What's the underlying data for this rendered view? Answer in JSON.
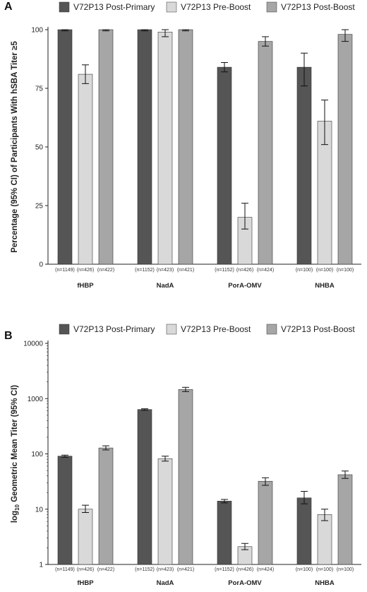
{
  "colors": {
    "post_primary": "#555555",
    "pre_boost": "#d9d9d9",
    "post_boost": "#a6a6a6",
    "stroke": "#333333",
    "axis": "#222222"
  },
  "chart_data": [
    {
      "panel": "A",
      "type": "bar",
      "ylabel": "Percentage (95% CI) of Participants With hSBA Titer ≥5",
      "ylim": [
        0,
        100
      ],
      "yticks": [
        0,
        25,
        50,
        75,
        100
      ],
      "categories": [
        "fHBP",
        "NadA",
        "PorA-OMV",
        "NHBA"
      ],
      "legend_position": "top",
      "series": [
        {
          "name": "V72P13 Post-Primary",
          "color_key": "post_primary",
          "values": [
            100,
            100,
            84,
            84
          ],
          "ci_low": [
            99.5,
            99.5,
            82,
            76
          ],
          "ci_high": [
            100,
            100,
            86,
            90
          ],
          "n": [
            "(n=1149)",
            "(n=1152)",
            "(n=1152)",
            "(n=100)"
          ]
        },
        {
          "name": "V72P13 Pre-Boost",
          "color_key": "pre_boost",
          "values": [
            81,
            99,
            20,
            61
          ],
          "ci_low": [
            77,
            97,
            15,
            51
          ],
          "ci_high": [
            85,
            100,
            26,
            70
          ],
          "n": [
            "(n=426)",
            "(n=423)",
            "(n=426)",
            "(n=100)"
          ]
        },
        {
          "name": "V72P13 Post-Boost",
          "color_key": "post_boost",
          "values": [
            100,
            100,
            95,
            98
          ],
          "ci_low": [
            99.5,
            99.5,
            93,
            95
          ],
          "ci_high": [
            100,
            100,
            97,
            100
          ],
          "n": [
            "(n=422)",
            "(n=421)",
            "(n=424)",
            "(n=100)"
          ]
        }
      ]
    },
    {
      "panel": "B",
      "type": "bar",
      "yscale": "log",
      "ylabel_prefix": "log",
      "ylabel_sub": "10",
      "ylabel_rest": " Geometric Mean Titer (95% CI)",
      "ylim": [
        1,
        10000
      ],
      "yticks": [
        1,
        10,
        100,
        1000,
        10000
      ],
      "ytick_labels": [
        "1",
        "10",
        "100",
        "1000",
        "10000"
      ],
      "categories": [
        "fHBP",
        "NadA",
        "PorA-OMV",
        "NHBA"
      ],
      "legend_position": "top",
      "series": [
        {
          "name": "V72P13 Post-Primary",
          "color_key": "post_primary",
          "values": [
            91,
            635,
            14,
            16
          ],
          "ci_low": [
            87,
            615,
            13,
            12.5
          ],
          "ci_high": [
            95,
            655,
            15,
            21
          ],
          "n": [
            "(n=1149)",
            "(n=1152)",
            "(n=1152)",
            "(n=100)"
          ]
        },
        {
          "name": "V72P13 Pre-Boost",
          "color_key": "pre_boost",
          "values": [
            10,
            82,
            2.1,
            8
          ],
          "ci_low": [
            8.7,
            74,
            1.85,
            6.2
          ],
          "ci_high": [
            11.8,
            91,
            2.4,
            10
          ],
          "n": [
            "(n=426)",
            "(n=423)",
            "(n=426)",
            "(n=100)"
          ]
        },
        {
          "name": "V72P13 Post-Boost",
          "color_key": "post_boost",
          "values": [
            128,
            1460,
            32,
            42
          ],
          "ci_low": [
            118,
            1340,
            27,
            36
          ],
          "ci_high": [
            140,
            1600,
            37,
            49
          ],
          "n": [
            "(n=422)",
            "(n=421)",
            "(n=424)",
            "(n=100)"
          ]
        }
      ]
    }
  ]
}
